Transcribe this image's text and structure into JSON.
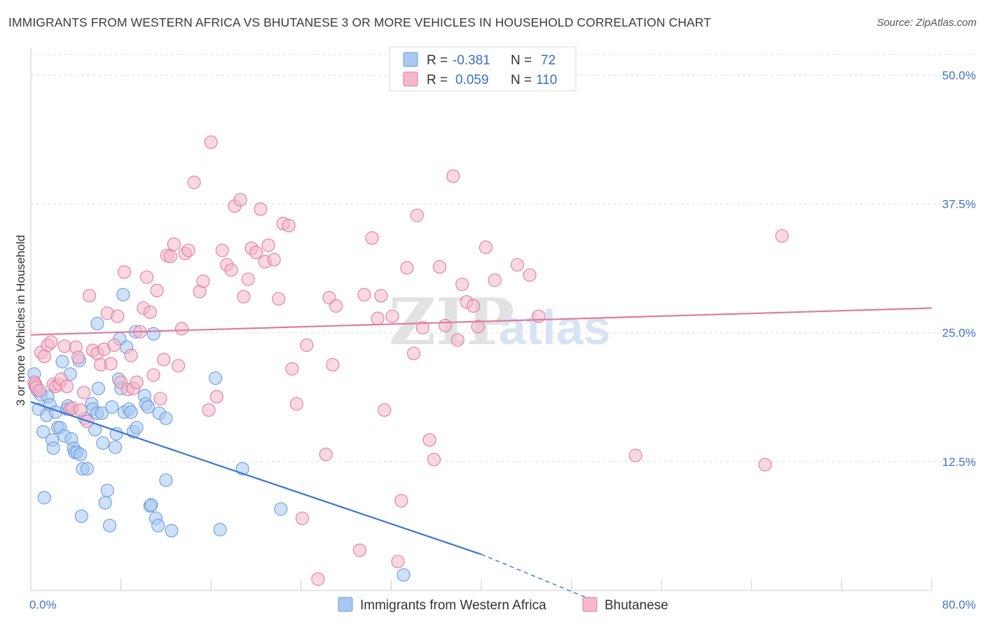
{
  "title": "IMMIGRANTS FROM WESTERN AFRICA VS BHUTANESE 3 OR MORE VEHICLES IN HOUSEHOLD CORRELATION CHART",
  "source": "Source: ZipAtlas.com",
  "watermark": {
    "zip": "ZIP",
    "atlas": "atlas"
  },
  "legend_top": {
    "rows": [
      {
        "r_label": "R =",
        "r_value": "-0.381",
        "n_label": "N =",
        "n_value": "72",
        "color": "#a8c8f0"
      },
      {
        "r_label": "R =",
        "r_value": "0.059",
        "n_label": "N =",
        "n_value": "110",
        "color": "#f5b8cb"
      }
    ]
  },
  "chart_data": {
    "type": "scatter",
    "title": "IMMIGRANTS FROM WESTERN AFRICA VS BHUTANESE 3 OR MORE VEHICLES IN HOUSEHOLD CORRELATION CHART",
    "xlabel": "",
    "ylabel": "3 or more Vehicles in Household",
    "xlim": [
      0,
      80
    ],
    "ylim": [
      0,
      52
    ],
    "x_tick_labels": [
      "0.0%",
      "80.0%"
    ],
    "y_ticks": [
      12.5,
      25.0,
      37.5,
      50.0
    ],
    "y_tick_labels": [
      "12.5%",
      "25.0%",
      "37.5%",
      "50.0%"
    ],
    "grid": true,
    "legend_position": "bottom",
    "series": [
      {
        "name": "Immigrants from Western Africa",
        "color": "#6a9be0",
        "fill": "#a8c8f0",
        "trend": {
          "x": [
            0,
            40
          ],
          "y": [
            18.3,
            3.5
          ],
          "dash_to": [
            50,
            -1
          ]
        },
        "points": [
          [
            0.3,
            21.0
          ],
          [
            0.4,
            19.8
          ],
          [
            0.6,
            19.4
          ],
          [
            0.7,
            17.6
          ],
          [
            0.9,
            19.0
          ],
          [
            1.1,
            15.4
          ],
          [
            1.2,
            9.0
          ],
          [
            1.4,
            17.0
          ],
          [
            1.5,
            18.8
          ],
          [
            1.7,
            18.0
          ],
          [
            1.9,
            14.6
          ],
          [
            2.0,
            13.8
          ],
          [
            2.2,
            17.3
          ],
          [
            2.4,
            15.8
          ],
          [
            2.6,
            15.8
          ],
          [
            2.8,
            22.2
          ],
          [
            3.0,
            15.0
          ],
          [
            3.2,
            17.6
          ],
          [
            3.3,
            17.9
          ],
          [
            3.5,
            21.0
          ],
          [
            3.6,
            14.7
          ],
          [
            3.8,
            13.8
          ],
          [
            3.9,
            13.4
          ],
          [
            4.1,
            13.4
          ],
          [
            4.3,
            22.3
          ],
          [
            4.4,
            13.2
          ],
          [
            4.5,
            7.2
          ],
          [
            4.6,
            11.8
          ],
          [
            4.8,
            16.7
          ],
          [
            5.0,
            11.8
          ],
          [
            5.4,
            18.1
          ],
          [
            5.5,
            17.6
          ],
          [
            5.7,
            15.6
          ],
          [
            5.9,
            17.2
          ],
          [
            6.0,
            19.6
          ],
          [
            6.3,
            17.2
          ],
          [
            6.4,
            14.3
          ],
          [
            6.6,
            8.5
          ],
          [
            6.8,
            9.7
          ],
          [
            7.0,
            6.3
          ],
          [
            7.2,
            17.8
          ],
          [
            7.5,
            13.9
          ],
          [
            7.6,
            15.2
          ],
          [
            7.8,
            20.5
          ],
          [
            7.9,
            24.4
          ],
          [
            8.0,
            19.6
          ],
          [
            8.2,
            28.7
          ],
          [
            8.3,
            17.3
          ],
          [
            8.5,
            23.6
          ],
          [
            8.7,
            17.6
          ],
          [
            8.9,
            17.3
          ],
          [
            9.1,
            15.4
          ],
          [
            9.3,
            25.1
          ],
          [
            9.4,
            15.8
          ],
          [
            10.1,
            18.9
          ],
          [
            10.2,
            18.1
          ],
          [
            10.4,
            17.8
          ],
          [
            10.6,
            8.2
          ],
          [
            10.7,
            8.3
          ],
          [
            10.9,
            24.9
          ],
          [
            11.1,
            7.0
          ],
          [
            11.3,
            6.3
          ],
          [
            11.4,
            17.2
          ],
          [
            12.0,
            16.7
          ],
          [
            12.0,
            10.7
          ],
          [
            12.5,
            5.8
          ],
          [
            5.9,
            25.9
          ],
          [
            16.4,
            20.6
          ],
          [
            16.8,
            5.9
          ],
          [
            18.8,
            11.8
          ],
          [
            22.2,
            7.9
          ],
          [
            33.1,
            1.5
          ]
        ]
      },
      {
        "name": "Bhutanese",
        "color": "#e07aa0",
        "fill": "#f5b8cb",
        "trend": {
          "x": [
            0,
            80
          ],
          "y": [
            24.8,
            27.4
          ]
        },
        "points": [
          [
            0.3,
            20.2
          ],
          [
            0.4,
            20.0
          ],
          [
            0.5,
            19.7
          ],
          [
            0.8,
            19.4
          ],
          [
            0.9,
            23.1
          ],
          [
            1.2,
            22.7
          ],
          [
            1.5,
            23.8
          ],
          [
            1.8,
            24.1
          ],
          [
            2.0,
            20.0
          ],
          [
            2.2,
            19.8
          ],
          [
            2.5,
            20.0
          ],
          [
            2.7,
            20.5
          ],
          [
            3.0,
            23.7
          ],
          [
            3.2,
            19.8
          ],
          [
            3.5,
            17.6
          ],
          [
            3.7,
            17.7
          ],
          [
            4.0,
            23.6
          ],
          [
            4.2,
            22.6
          ],
          [
            4.4,
            17.5
          ],
          [
            4.7,
            19.2
          ],
          [
            5.0,
            16.4
          ],
          [
            5.2,
            28.6
          ],
          [
            5.5,
            23.3
          ],
          [
            5.9,
            23.0
          ],
          [
            6.2,
            21.9
          ],
          [
            6.5,
            23.4
          ],
          [
            6.8,
            26.9
          ],
          [
            7.1,
            22.0
          ],
          [
            7.4,
            23.8
          ],
          [
            7.7,
            26.6
          ],
          [
            8.0,
            20.2
          ],
          [
            8.3,
            30.9
          ],
          [
            8.6,
            19.5
          ],
          [
            8.9,
            22.8
          ],
          [
            9.1,
            19.6
          ],
          [
            9.4,
            20.2
          ],
          [
            9.7,
            25.1
          ],
          [
            10.0,
            27.4
          ],
          [
            10.3,
            30.4
          ],
          [
            10.6,
            27.0
          ],
          [
            10.9,
            20.9
          ],
          [
            11.2,
            29.1
          ],
          [
            11.5,
            18.6
          ],
          [
            11.8,
            22.4
          ],
          [
            12.1,
            32.5
          ],
          [
            12.4,
            32.4
          ],
          [
            12.7,
            33.6
          ],
          [
            13.1,
            21.8
          ],
          [
            13.4,
            25.4
          ],
          [
            13.7,
            32.7
          ],
          [
            14.0,
            33.0
          ],
          [
            14.5,
            39.6
          ],
          [
            15.0,
            29.0
          ],
          [
            15.3,
            30.0
          ],
          [
            15.8,
            17.5
          ],
          [
            16.0,
            43.5
          ],
          [
            16.5,
            18.8
          ],
          [
            17.0,
            33.0
          ],
          [
            17.4,
            31.6
          ],
          [
            17.8,
            31.1
          ],
          [
            18.1,
            37.3
          ],
          [
            18.6,
            37.9
          ],
          [
            18.9,
            28.5
          ],
          [
            19.3,
            30.2
          ],
          [
            19.6,
            33.2
          ],
          [
            20.0,
            32.8
          ],
          [
            20.4,
            37.0
          ],
          [
            20.8,
            31.9
          ],
          [
            21.1,
            33.5
          ],
          [
            21.6,
            32.1
          ],
          [
            22.0,
            28.3
          ],
          [
            22.4,
            35.6
          ],
          [
            22.9,
            35.4
          ],
          [
            23.2,
            21.5
          ],
          [
            23.6,
            18.1
          ],
          [
            24.1,
            7.0
          ],
          [
            24.5,
            23.8
          ],
          [
            25.5,
            1.1
          ],
          [
            26.2,
            13.2
          ],
          [
            26.5,
            28.4
          ],
          [
            26.8,
            21.9
          ],
          [
            27.1,
            27.6
          ],
          [
            29.2,
            3.9
          ],
          [
            29.6,
            28.7
          ],
          [
            30.3,
            34.2
          ],
          [
            30.8,
            26.4
          ],
          [
            31.1,
            28.6
          ],
          [
            31.4,
            17.5
          ],
          [
            32.1,
            26.6
          ],
          [
            32.6,
            2.8
          ],
          [
            32.9,
            8.7
          ],
          [
            33.4,
            31.3
          ],
          [
            34.0,
            23.0
          ],
          [
            34.3,
            36.4
          ],
          [
            34.8,
            25.5
          ],
          [
            35.4,
            14.6
          ],
          [
            35.8,
            12.7
          ],
          [
            36.3,
            31.4
          ],
          [
            36.8,
            25.7
          ],
          [
            37.5,
            40.2
          ],
          [
            37.9,
            24.3
          ],
          [
            38.3,
            29.7
          ],
          [
            38.7,
            28.0
          ],
          [
            39.3,
            27.6
          ],
          [
            39.7,
            25.6
          ],
          [
            40.4,
            33.3
          ],
          [
            41.2,
            30.1
          ],
          [
            43.2,
            31.6
          ],
          [
            44.3,
            30.6
          ],
          [
            45.1,
            26.6
          ],
          [
            53.7,
            13.1
          ],
          [
            65.2,
            12.2
          ],
          [
            66.7,
            34.4
          ]
        ]
      }
    ]
  },
  "bottom_legend": [
    {
      "label": "Immigrants from Western Africa",
      "color": "#a8c8f0"
    },
    {
      "label": "Bhutanese",
      "color": "#f5b8cb"
    }
  ]
}
